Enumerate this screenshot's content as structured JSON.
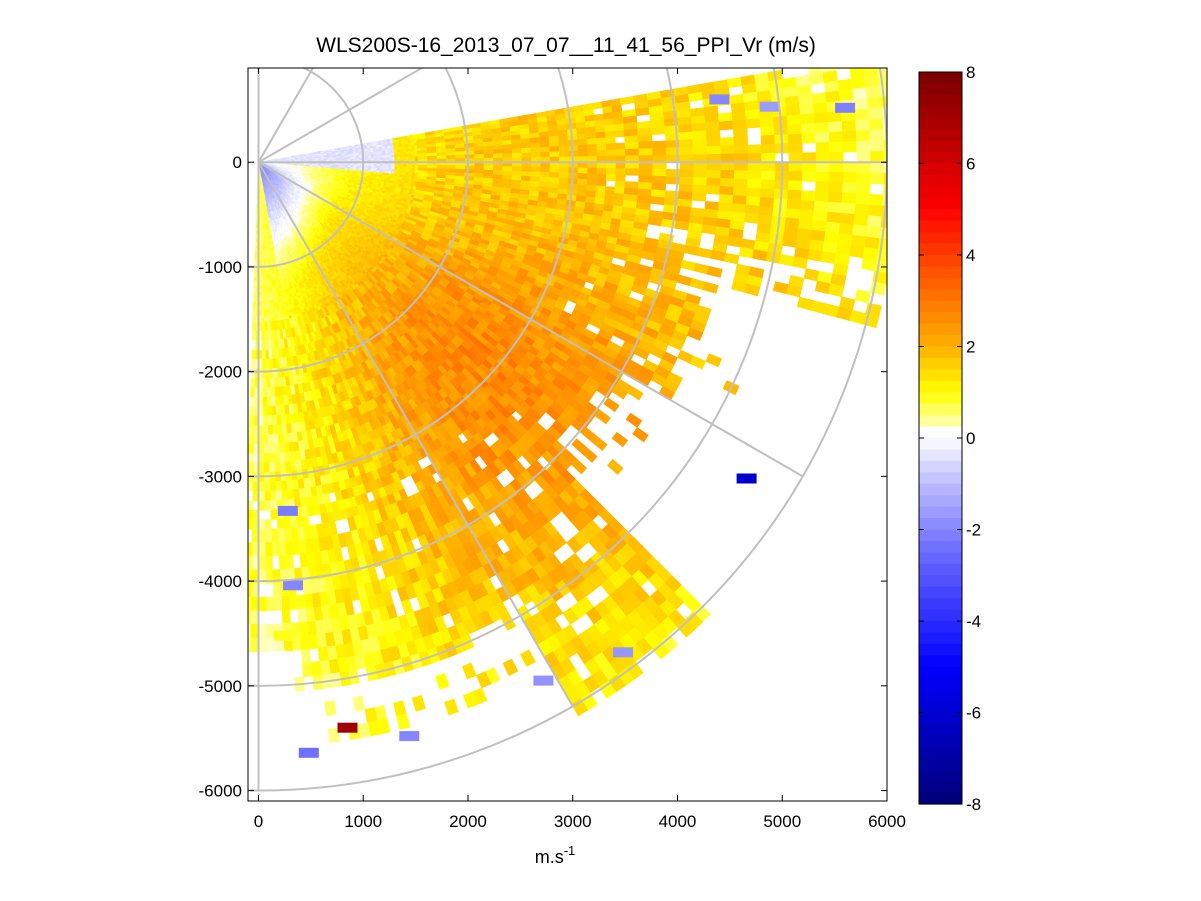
{
  "chart_data": {
    "type": "heatmap",
    "title": "WLS200S-16_2013_07_07__11_41_56_PPI_Vr (m/s)",
    "xlabel": "m.s",
    "xlabel_sup": "-1",
    "ylabel": "",
    "xlim": [
      -100,
      6000
    ],
    "ylim": [
      -6100,
      900
    ],
    "xticks": [
      0,
      1000,
      2000,
      3000,
      4000,
      5000,
      6000
    ],
    "xtick_labels": [
      "0",
      "1000",
      "2000",
      "3000",
      "4000",
      "5000",
      "6000"
    ],
    "yticks": [
      0,
      -1000,
      -2000,
      -3000,
      -4000,
      -5000,
      -6000
    ],
    "ytick_labels": [
      "0",
      "-1000",
      "-2000",
      "-3000",
      "-4000",
      "-5000",
      "-6000"
    ],
    "grid": "polar",
    "polar_grid": {
      "center": [
        0,
        0
      ],
      "ring_radii": [
        1000,
        2000,
        3000,
        4000,
        5000,
        6000
      ],
      "spoke_angles_deg": [
        90,
        60,
        30,
        0,
        -30,
        -60,
        -90
      ]
    },
    "scan": {
      "azimuth_start_deg": 10,
      "azimuth_end_deg": -92,
      "range_min": 40,
      "range_max": 6100
    },
    "colorbar": {
      "min": -8,
      "max": 8,
      "ticks": [
        8,
        6,
        4,
        2,
        0,
        -2,
        -4,
        -6,
        -8
      ],
      "tick_labels": [
        "8",
        "6",
        "4",
        "2",
        "0",
        "-2",
        "-4",
        "-6",
        "-8"
      ],
      "stops": [
        {
          "v": -8,
          "color": "#000078"
        },
        {
          "v": -5,
          "color": "#0000ff"
        },
        {
          "v": -2.5,
          "color": "#6a6aff"
        },
        {
          "v": -0.8,
          "color": "#c8c8ff"
        },
        {
          "v": -0.15,
          "color": "#f4f4ff"
        },
        {
          "v": 0.15,
          "color": "#ffffff"
        },
        {
          "v": 0.4,
          "color": "#ffff90"
        },
        {
          "v": 1,
          "color": "#ffff00"
        },
        {
          "v": 2,
          "color": "#ffb000"
        },
        {
          "v": 3.5,
          "color": "#ff5a00"
        },
        {
          "v": 5,
          "color": "#ff0000"
        },
        {
          "v": 8,
          "color": "#780000"
        }
      ]
    },
    "isolated_cells": [
      {
        "x": 850,
        "y": -5400,
        "v": 7.2
      },
      {
        "x": 480,
        "y": -5640,
        "v": -2.4
      },
      {
        "x": 1440,
        "y": -5480,
        "v": -2.0
      },
      {
        "x": 2720,
        "y": -4950,
        "v": -1.8
      },
      {
        "x": 3480,
        "y": -4680,
        "v": -1.7
      },
      {
        "x": 4660,
        "y": -3020,
        "v": -6.2
      },
      {
        "x": 280,
        "y": -3330,
        "v": -2.2
      },
      {
        "x": 330,
        "y": -4040,
        "v": -2.0
      },
      {
        "x": 240,
        "y": -4520,
        "v": 0.9
      },
      {
        "x": 4880,
        "y": 530,
        "v": -1.6
      },
      {
        "x": 5600,
        "y": 520,
        "v": -2.1
      },
      {
        "x": 4400,
        "y": 600,
        "v": -2.0
      }
    ]
  }
}
